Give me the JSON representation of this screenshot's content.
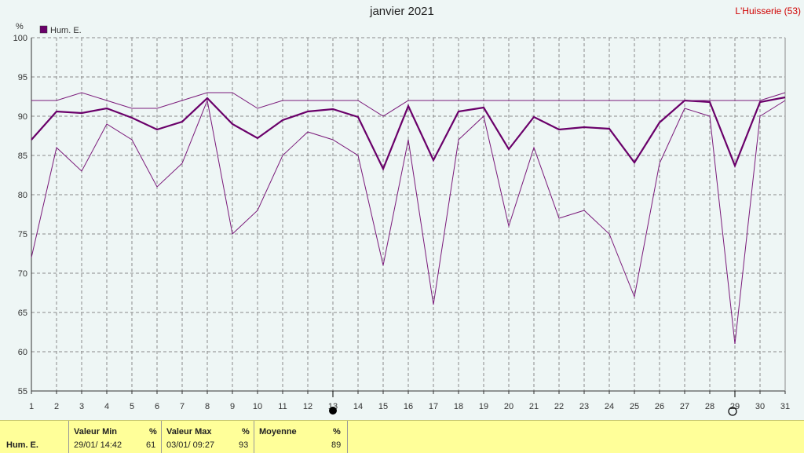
{
  "header": {
    "title": "janvier 2021",
    "station": "L'Huisserie (53)"
  },
  "legend": {
    "label": "Hum. E.",
    "color": "#6a006a"
  },
  "footer": {
    "series_label": "Hum. E.",
    "min_header": "Valeur Min",
    "min_unit": "%",
    "min_date": "29/01/  14:42",
    "min_value": "61",
    "max_header": "Valeur Max",
    "max_unit": "%",
    "max_date": "03/01/  09:27",
    "max_value": "93",
    "avg_header": "Moyenne",
    "avg_unit": "%",
    "avg_value": "89"
  },
  "chart_data": {
    "type": "line",
    "title": "janvier 2021",
    "ylabel": "%",
    "xlabel": "",
    "ylim": [
      55,
      100
    ],
    "yticks": [
      55,
      60,
      65,
      70,
      75,
      80,
      85,
      90,
      95,
      100
    ],
    "x": [
      1,
      2,
      3,
      4,
      5,
      6,
      7,
      8,
      9,
      10,
      11,
      12,
      13,
      14,
      15,
      16,
      17,
      18,
      19,
      20,
      21,
      22,
      23,
      24,
      25,
      26,
      27,
      28,
      29,
      30,
      31
    ],
    "grid": true,
    "moon_markers": {
      "full_moon_day": 13,
      "new_moon_day": 29
    },
    "series": [
      {
        "name": "Hum. E.",
        "role": "mean",
        "color": "#6a006a",
        "values": [
          87,
          90.6,
          90.4,
          91,
          89.8,
          88.3,
          89.3,
          92.3,
          89,
          87.2,
          89.5,
          90.6,
          90.9,
          89.9,
          83.3,
          91.3,
          84.4,
          90.6,
          91.1,
          85.8,
          89.9,
          88.3,
          88.6,
          88.4,
          84.1,
          89.2,
          92,
          91.8,
          83.7,
          91.8,
          92.4
        ]
      },
      {
        "role": "max",
        "color": "#7a1a7a",
        "values": [
          92,
          92,
          93,
          92,
          91,
          91,
          92,
          93,
          93,
          91,
          92,
          92,
          92,
          92,
          90,
          92,
          92,
          92,
          92,
          92,
          92,
          92,
          92,
          92,
          92,
          92,
          92,
          92,
          92,
          92,
          93
        ]
      },
      {
        "role": "min",
        "color": "#7a1a7a",
        "values": [
          72,
          86,
          83,
          89,
          87,
          81,
          84,
          92,
          75,
          78,
          85,
          88,
          87,
          85,
          71,
          87,
          66,
          87,
          90,
          76,
          86,
          77,
          78,
          75,
          67,
          84,
          91,
          90,
          61,
          90,
          92
        ]
      }
    ]
  }
}
